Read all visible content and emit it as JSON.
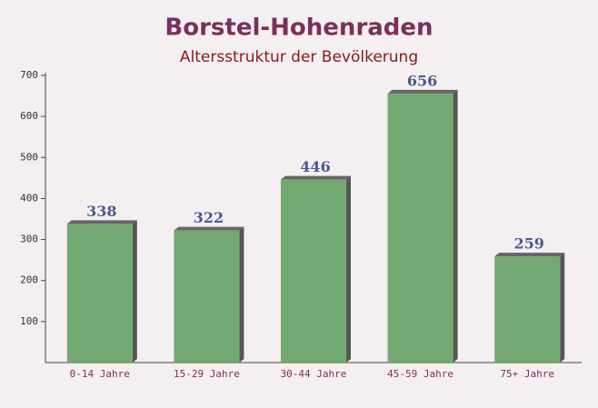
{
  "chart_data": {
    "type": "bar",
    "title": "Borstel-Hohenraden",
    "subtitle": "Altersstruktur der Bevölkerung",
    "categories": [
      "0-14 Jahre",
      "15-29 Jahre",
      "30-44 Jahre",
      "45-59 Jahre",
      "75+ Jahre"
    ],
    "values": [
      338,
      322,
      446,
      656,
      259
    ],
    "color": "#6aa56a",
    "ylim": [
      0,
      700
    ],
    "yticks": [
      100,
      200,
      300,
      400,
      500,
      600,
      700
    ]
  }
}
